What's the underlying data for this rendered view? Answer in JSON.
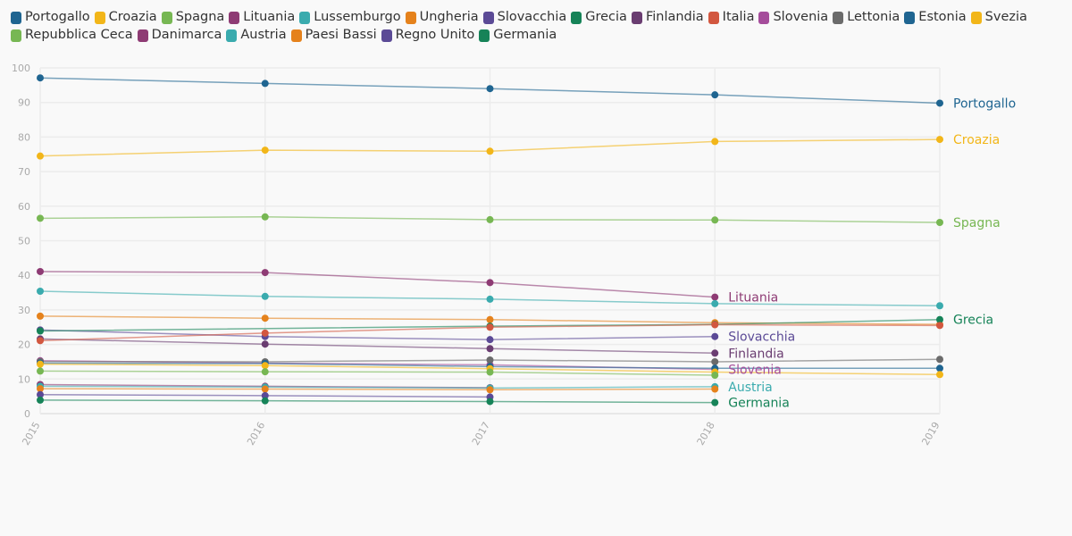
{
  "chart_data": {
    "type": "line",
    "title": "",
    "xlabel": "",
    "ylabel": "",
    "x": [
      "2015",
      "2016",
      "2017",
      "2018",
      "2019"
    ],
    "y_ticks": [
      "0",
      "10",
      "20",
      "30",
      "40",
      "50",
      "60",
      "70",
      "80",
      "90",
      "100"
    ],
    "ylim": [
      0,
      100
    ],
    "grid": true,
    "legend_position": "top",
    "series": [
      {
        "name": "Portogallo",
        "color": "#1f6591",
        "values": [
          97.1,
          95.5,
          94.0,
          92.2,
          89.8
        ],
        "label": "Portogallo"
      },
      {
        "name": "Croazia",
        "color": "#f2b619",
        "values": [
          74.5,
          76.2,
          75.9,
          78.7,
          79.3
        ],
        "label": "Croazia"
      },
      {
        "name": "Spagna",
        "color": "#77b753",
        "values": [
          56.5,
          56.9,
          56.1,
          56.0,
          55.3
        ],
        "label": "Spagna"
      },
      {
        "name": "Lituania",
        "color": "#8e3b74",
        "values": [
          41.1,
          40.8,
          37.9,
          33.7,
          null
        ],
        "label": "Lituania"
      },
      {
        "name": "Lussemburgo",
        "color": "#3aabae",
        "values": [
          35.4,
          33.9,
          33.1,
          31.8,
          31.2
        ],
        "label": ""
      },
      {
        "name": "Ungheria",
        "color": "#e5821c",
        "values": [
          28.2,
          27.6,
          27.2,
          26.3,
          25.8
        ],
        "label": ""
      },
      {
        "name": "Slovacchia",
        "color": "#5b4a96",
        "values": [
          24.2,
          22.3,
          21.4,
          22.3,
          null
        ],
        "label": "Slovacchia"
      },
      {
        "name": "Grecia",
        "color": "#168358",
        "values": [
          23.9,
          null,
          25.3,
          25.8,
          27.2
        ],
        "label": "Grecia"
      },
      {
        "name": "Finlandia",
        "color": "#6a3d71",
        "values": [
          21.6,
          20.1,
          18.8,
          17.5,
          null
        ],
        "label": "Finlandia"
      },
      {
        "name": "Italia",
        "color": "#d2573f",
        "values": [
          21.1,
          23.3,
          25.0,
          25.7,
          25.5
        ],
        "label": ""
      },
      {
        "name": "Slovenia",
        "color": "#a54d9b",
        "values": [
          15.3,
          14.6,
          14.1,
          12.8,
          null
        ],
        "label": "Slovenia"
      },
      {
        "name": "Lettonia",
        "color": "#6b6b6b",
        "values": [
          15.1,
          15.0,
          15.5,
          15.0,
          15.7
        ],
        "label": ""
      },
      {
        "name": "Estonia",
        "color": "#1f6591",
        "values": [
          14.6,
          14.5,
          13.6,
          13.1,
          13.1
        ],
        "label": ""
      },
      {
        "name": "Svezia",
        "color": "#f2b619",
        "values": [
          14.3,
          13.9,
          13.0,
          12.0,
          11.3
        ],
        "label": ""
      },
      {
        "name": "Repubblica Ceca",
        "color": "#77b753",
        "values": [
          12.3,
          12.1,
          12.0,
          11.1,
          null
        ],
        "label": ""
      },
      {
        "name": "Danimarca",
        "color": "#8e3b74",
        "values": [
          8.4,
          7.9,
          7.5,
          null,
          null
        ],
        "label": ""
      },
      {
        "name": "Austria",
        "color": "#3aabae",
        "values": [
          7.9,
          7.7,
          7.4,
          7.8,
          null
        ],
        "label": "Austria"
      },
      {
        "name": "Paesi Bassi",
        "color": "#e5821c",
        "values": [
          7.2,
          7.1,
          6.9,
          7.1,
          null
        ],
        "label": ""
      },
      {
        "name": "Regno Unito",
        "color": "#5b4a96",
        "values": [
          5.5,
          5.2,
          4.8,
          null,
          null
        ],
        "label": ""
      },
      {
        "name": "Germania",
        "color": "#168358",
        "values": [
          3.9,
          3.7,
          3.5,
          3.2,
          null
        ],
        "label": "Germania"
      }
    ]
  }
}
